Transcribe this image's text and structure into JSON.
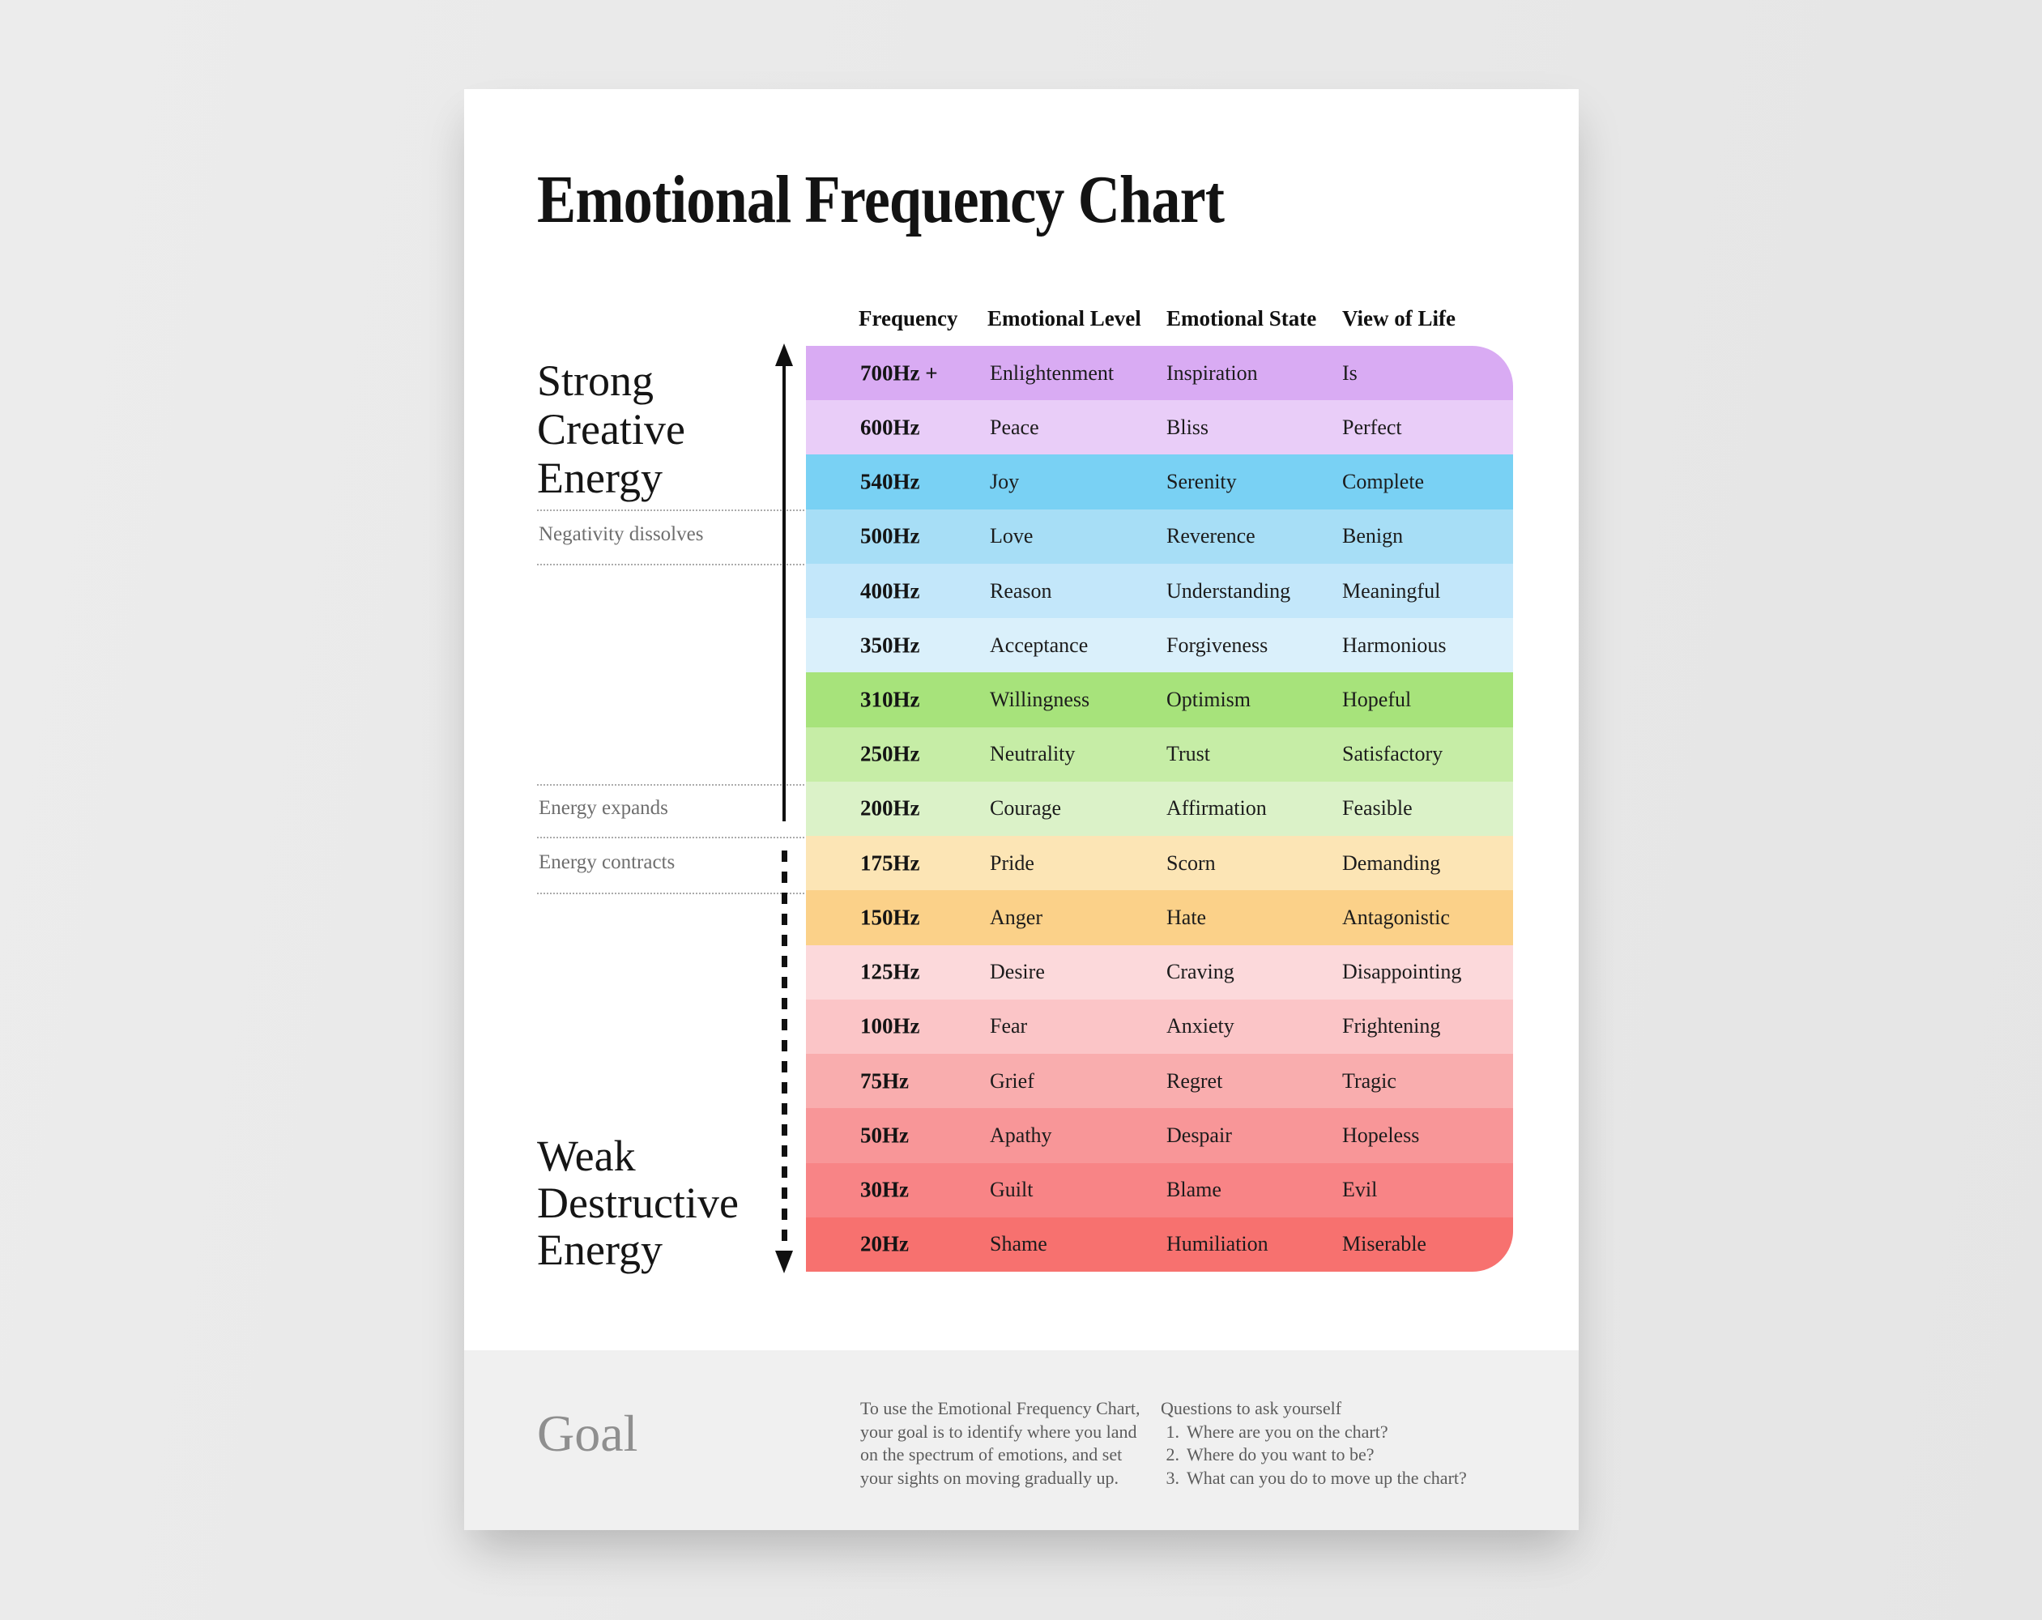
{
  "title": "Emotional Frequency Chart",
  "chart_data": {
    "type": "table",
    "title": "Emotional Frequency Chart",
    "columns": [
      "Frequency",
      "Emotional Level",
      "Emotional State",
      "View of Life"
    ],
    "rows": [
      {
        "frequency": "700Hz +",
        "level": "Enlightenment",
        "state": "Inspiration",
        "view": "Is",
        "color": "#d9abf3"
      },
      {
        "frequency": "600Hz",
        "level": "Peace",
        "state": "Bliss",
        "view": "Perfect",
        "color": "#e9cdf8"
      },
      {
        "frequency": "540Hz",
        "level": "Joy",
        "state": "Serenity",
        "view": "Complete",
        "color": "#79d1f4"
      },
      {
        "frequency": "500Hz",
        "level": "Love",
        "state": "Reverence",
        "view": "Benign",
        "color": "#a7def6"
      },
      {
        "frequency": "400Hz",
        "level": "Reason",
        "state": "Understanding",
        "view": "Meaningful",
        "color": "#c3e7fa"
      },
      {
        "frequency": "350Hz",
        "level": "Acceptance",
        "state": "Forgiveness",
        "view": "Harmonious",
        "color": "#daf0fb"
      },
      {
        "frequency": "310Hz",
        "level": "Willingness",
        "state": "Optimism",
        "view": "Hopeful",
        "color": "#a7e37b"
      },
      {
        "frequency": "250Hz",
        "level": "Neutrality",
        "state": "Trust",
        "view": "Satisfactory",
        "color": "#c6eda6"
      },
      {
        "frequency": "200Hz",
        "level": "Courage",
        "state": "Affirmation",
        "view": "Feasible",
        "color": "#dbf2c8"
      },
      {
        "frequency": "175Hz",
        "level": "Pride",
        "state": "Scorn",
        "view": "Demanding",
        "color": "#fce5b5"
      },
      {
        "frequency": "150Hz",
        "level": "Anger",
        "state": "Hate",
        "view": "Antagonistic",
        "color": "#fbd189"
      },
      {
        "frequency": "125Hz",
        "level": "Desire",
        "state": "Craving",
        "view": "Disappointing",
        "color": "#fcd9db"
      },
      {
        "frequency": "100Hz",
        "level": "Fear",
        "state": "Anxiety",
        "view": "Frightening",
        "color": "#fbc5c7"
      },
      {
        "frequency": "75Hz",
        "level": "Grief",
        "state": "Regret",
        "view": "Tragic",
        "color": "#f9adae"
      },
      {
        "frequency": "50Hz",
        "level": "Apathy",
        "state": "Despair",
        "view": "Hopeless",
        "color": "#f89698"
      },
      {
        "frequency": "30Hz",
        "level": "Guilt",
        "state": "Blame",
        "view": "Evil",
        "color": "#f88486"
      },
      {
        "frequency": "20Hz",
        "level": "Shame",
        "state": "Humiliation",
        "view": "Miserable",
        "color": "#f7716f"
      }
    ],
    "annotations": {
      "strong_label": "Strong\nCreative\nEnergy",
      "negativity_note": "Negativity dissolves",
      "expands_note": "Energy expands",
      "contracts_note": "Energy contracts",
      "weak_label": "Weak\nDestructive\nEnergy"
    }
  },
  "footer": {
    "heading": "Goal",
    "paragraph": "To use the Emotional Frequency Chart,\nyour goal is to identify where you land\non the spectrum of emotions, and set\nyour sights on moving gradually up.",
    "questions_title": "Questions to ask yourself",
    "questions": [
      {
        "n": "1.",
        "text": "Where are you on the chart?"
      },
      {
        "n": "2.",
        "text": "Where do you want to be?"
      },
      {
        "n": "3.",
        "text": "What can you do to move up the chart?"
      }
    ]
  }
}
